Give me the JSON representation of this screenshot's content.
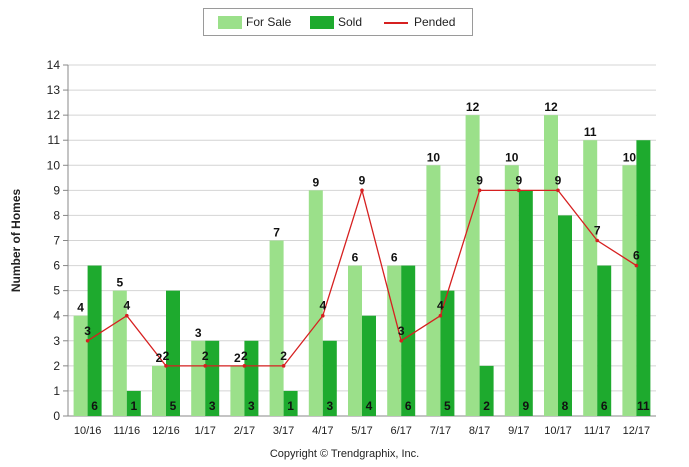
{
  "chart_data": {
    "type": "bar",
    "ylabel": "Number of Homes",
    "ylim": [
      0,
      14
    ],
    "yticks": [
      0,
      1,
      2,
      3,
      4,
      5,
      6,
      7,
      8,
      9,
      10,
      11,
      12,
      13,
      14
    ],
    "grid": true,
    "legend_position": "top-center",
    "categories": [
      "10/16",
      "11/16",
      "12/16",
      "1/17",
      "2/17",
      "3/17",
      "4/17",
      "5/17",
      "6/17",
      "7/17",
      "8/17",
      "9/17",
      "10/17",
      "11/17",
      "12/17"
    ],
    "series": [
      {
        "name": "For Sale",
        "type": "bar",
        "color": "#9be08a",
        "values": [
          4,
          5,
          2,
          3,
          2,
          7,
          9,
          6,
          6,
          10,
          12,
          10,
          12,
          11,
          10
        ]
      },
      {
        "name": "Sold",
        "type": "bar",
        "color": "#1eaa2e",
        "values": [
          6,
          1,
          5,
          3,
          3,
          1,
          3,
          4,
          6,
          5,
          2,
          9,
          8,
          6,
          11
        ]
      },
      {
        "name": "Pended",
        "type": "line",
        "color": "#d62020",
        "values": [
          3,
          4,
          2,
          2,
          2,
          2,
          4,
          9,
          3,
          4,
          9,
          9,
          9,
          7,
          6
        ]
      }
    ]
  },
  "legend": {
    "for_sale": "For Sale",
    "sold": "Sold",
    "pended": "Pended"
  },
  "footer": {
    "copyright": "Copyright © Trendgraphix, Inc."
  }
}
